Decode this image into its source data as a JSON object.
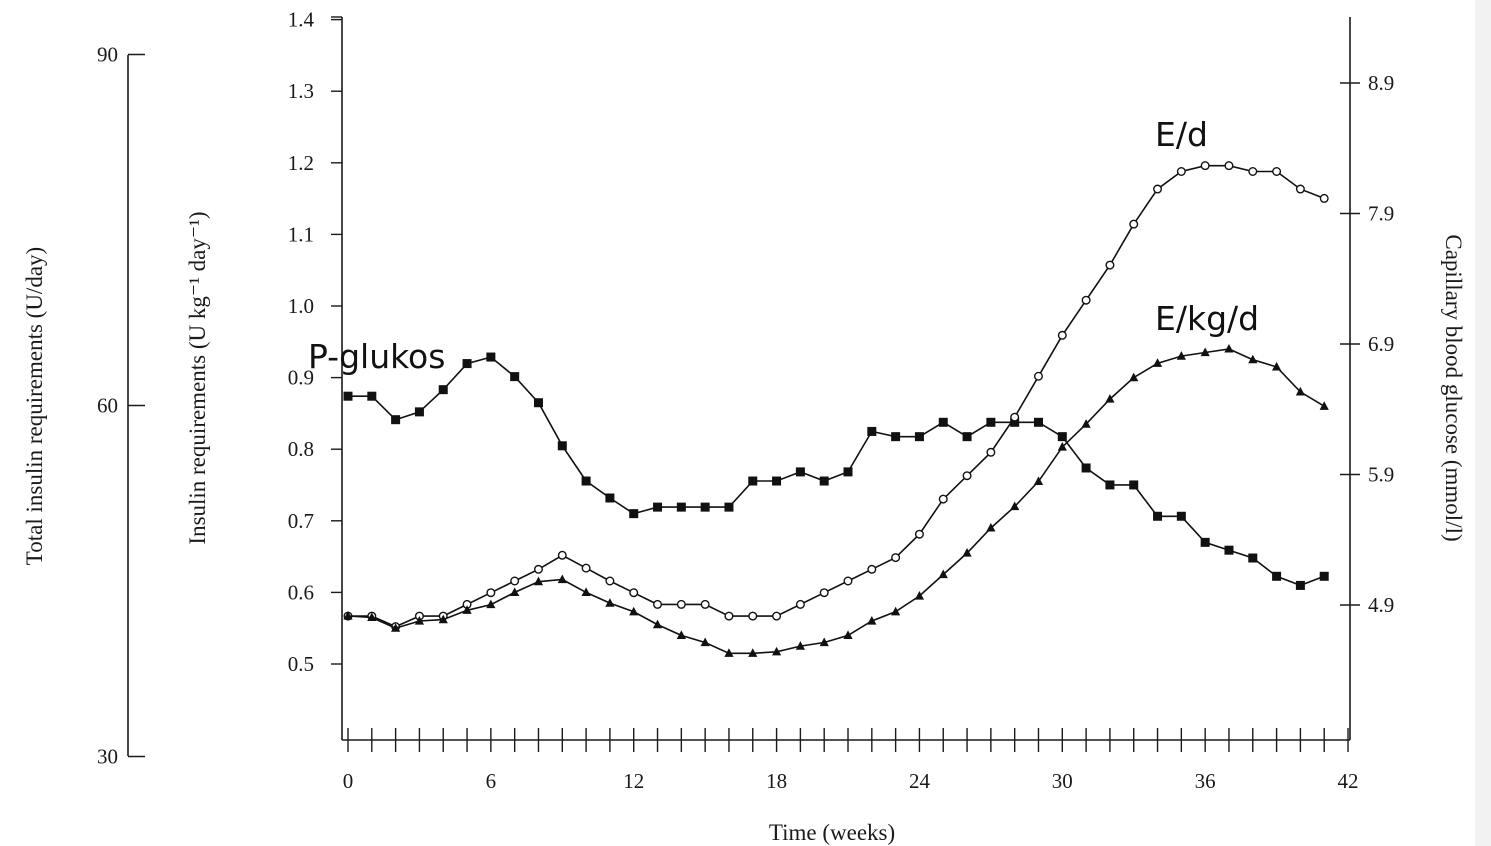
{
  "chart_data": {
    "type": "line",
    "xlabel": "Time (weeks)",
    "ylabel": "Insulin requirements  (U kg⁻¹ day⁻¹)",
    "outer_ylabel": "Total insulin requirements (U/day)",
    "right_ylabel": "Capillary blood glucose (mmol/l)",
    "xlim": [
      0,
      42
    ],
    "x_ticks": [
      0,
      6,
      12,
      18,
      24,
      30,
      36,
      42
    ],
    "ylim": [
      0.4,
      1.4
    ],
    "y_ticks": [
      "0.5",
      "0.6",
      "0.7",
      "0.8",
      "0.9",
      "1.0",
      "1.1",
      "1.2",
      "1.3",
      "1.4"
    ],
    "outer_ylim": [
      30,
      90
    ],
    "outer_ticks": [
      "30",
      "60",
      "90"
    ],
    "right_ylim": [
      2.9,
      11.9
    ],
    "right_ticks": [
      "4.9",
      "5.9",
      "6.9",
      "7.9",
      "8.9"
    ],
    "grid": false,
    "annotations": [
      {
        "text": "E/d",
        "series": "E/d"
      },
      {
        "text": "E/kg/d",
        "series": "E/kg/d"
      },
      {
        "text": "P-glukos",
        "series": "P-glukos"
      }
    ],
    "series": [
      {
        "name": "P-glukos",
        "marker": "square",
        "axis": "right",
        "x": [
          0,
          1,
          2,
          3,
          4,
          5,
          6,
          7,
          8,
          9,
          10,
          11,
          12,
          13,
          14,
          15,
          16,
          17,
          18,
          19,
          20,
          21,
          22,
          23,
          24,
          25,
          26,
          27,
          28,
          29,
          30,
          31,
          32,
          33,
          34,
          35,
          36,
          37,
          38,
          39,
          40,
          41
        ],
        "values": [
          6.5,
          6.5,
          6.32,
          6.38,
          6.55,
          6.75,
          6.8,
          6.65,
          6.45,
          6.12,
          5.85,
          5.72,
          5.6,
          5.65,
          5.65,
          5.65,
          5.65,
          5.85,
          5.85,
          5.92,
          5.85,
          5.92,
          6.23,
          6.19,
          6.19,
          6.3,
          6.19,
          6.3,
          6.3,
          6.3,
          6.19,
          5.95,
          5.82,
          5.82,
          5.58,
          5.58,
          5.38,
          5.32,
          5.26,
          5.12,
          5.05,
          5.12
        ]
      },
      {
        "name": "E/d",
        "marker": "open-circle",
        "axis": "outer",
        "x": [
          0,
          1,
          2,
          3,
          4,
          5,
          6,
          7,
          8,
          9,
          10,
          11,
          12,
          13,
          14,
          15,
          16,
          17,
          18,
          19,
          20,
          21,
          22,
          23,
          24,
          25,
          26,
          27,
          28,
          29,
          30,
          31,
          32,
          33,
          34,
          35,
          36,
          37,
          38,
          39,
          40,
          41
        ],
        "values": [
          42,
          42,
          41.1,
          42,
          42,
          43,
          44,
          45,
          46,
          47.2,
          46.1,
          45,
          44,
          43,
          43,
          43,
          42,
          42,
          42,
          43,
          44,
          45,
          46,
          47,
          49,
          52,
          54,
          56,
          59,
          62.5,
          66,
          69,
          72,
          75.5,
          78.5,
          80,
          80.5,
          80.5,
          80,
          80,
          78.5,
          77.7
        ]
      },
      {
        "name": "E/kg/d",
        "marker": "filled-triangle",
        "axis": "left",
        "x": [
          0,
          1,
          2,
          3,
          4,
          5,
          6,
          7,
          8,
          9,
          10,
          11,
          12,
          13,
          14,
          15,
          16,
          17,
          18,
          19,
          20,
          21,
          22,
          23,
          24,
          25,
          26,
          27,
          28,
          29,
          30,
          31,
          32,
          33,
          34,
          35,
          36,
          37,
          38,
          39,
          40,
          41
        ],
        "values": [
          0.567,
          0.565,
          0.55,
          0.56,
          0.562,
          0.575,
          0.583,
          0.6,
          0.615,
          0.618,
          0.6,
          0.585,
          0.573,
          0.555,
          0.54,
          0.53,
          0.515,
          0.515,
          0.517,
          0.525,
          0.53,
          0.54,
          0.56,
          0.573,
          0.595,
          0.625,
          0.655,
          0.69,
          0.72,
          0.755,
          0.803,
          0.835,
          0.87,
          0.9,
          0.92,
          0.93,
          0.935,
          0.94,
          0.925,
          0.915,
          0.88,
          0.86
        ]
      }
    ]
  }
}
